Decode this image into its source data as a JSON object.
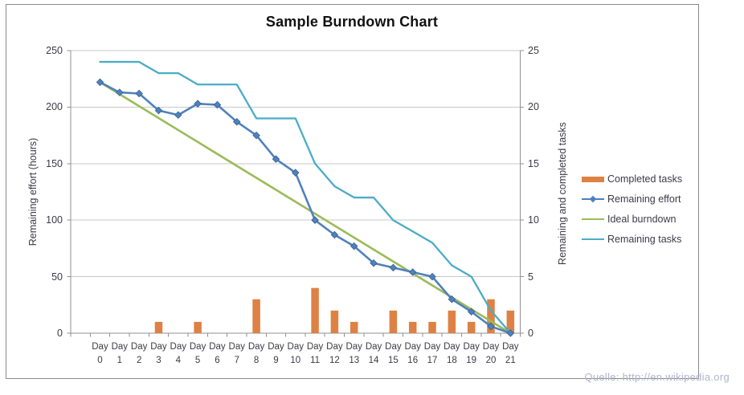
{
  "title": "Sample Burndown Chart",
  "attribution": "Quelle: http://en.wikipedia.org",
  "axes": {
    "left": {
      "title": "Remaining effort (hours)",
      "ticks": [
        0,
        50,
        100,
        150,
        200,
        250
      ]
    },
    "right": {
      "title": "Remaining and completed tasks",
      "ticks": [
        0,
        5,
        10,
        15,
        20,
        25
      ]
    },
    "x": {
      "prefix": "Day",
      "days": [
        "0",
        "1",
        "2",
        "3",
        "4",
        "5",
        "6",
        "7",
        "8",
        "9",
        "10",
        "11",
        "12",
        "13",
        "14",
        "15",
        "16",
        "17",
        "18",
        "19",
        "20",
        "21"
      ]
    }
  },
  "legend": [
    {
      "label": "Completed tasks",
      "type": "bar",
      "color": "#DE8144"
    },
    {
      "label": "Remaining effort",
      "type": "line-marker",
      "color": "#4F81BD"
    },
    {
      "label": "Ideal burndown",
      "type": "line",
      "color": "#9BBB59"
    },
    {
      "label": "Remaining tasks",
      "type": "line",
      "color": "#4BACC6"
    }
  ],
  "chart_data": {
    "type": "combo",
    "title": "Sample Burndown Chart",
    "categories": [
      "Day 0",
      "Day 1",
      "Day 2",
      "Day 3",
      "Day 4",
      "Day 5",
      "Day 6",
      "Day 7",
      "Day 8",
      "Day 9",
      "Day 10",
      "Day 11",
      "Day 12",
      "Day 13",
      "Day 14",
      "Day 15",
      "Day 16",
      "Day 17",
      "Day 18",
      "Day 19",
      "Day 20",
      "Day 21"
    ],
    "ylabel_left": "Remaining effort (hours)",
    "ylabel_right": "Remaining and completed tasks",
    "ylim_left": [
      0,
      250
    ],
    "ylim_right": [
      0,
      25
    ],
    "grid": "horizontal-major",
    "legend_position": "right-middle",
    "series": [
      {
        "name": "Completed tasks",
        "type": "bar",
        "axis": "right",
        "color": "#DE8144",
        "values": [
          0,
          0,
          0,
          1,
          0,
          1,
          0,
          0,
          3,
          0,
          0,
          4,
          2,
          1,
          0,
          2,
          1,
          1,
          2,
          1,
          3,
          2
        ]
      },
      {
        "name": "Remaining effort",
        "type": "line",
        "marker": "diamond",
        "axis": "left",
        "color": "#4F81BD",
        "values": [
          222,
          213,
          212,
          197,
          193,
          203,
          202,
          187,
          175,
          154,
          142,
          100,
          87,
          77,
          62,
          58,
          54,
          50,
          30,
          19,
          6,
          0
        ]
      },
      {
        "name": "Ideal burndown",
        "type": "line",
        "axis": "left",
        "color": "#9BBB59",
        "values": [
          222,
          211.4,
          200.9,
          190.3,
          179.7,
          169.1,
          158.6,
          148.0,
          137.4,
          126.9,
          116.3,
          105.7,
          95.1,
          84.6,
          74.0,
          63.4,
          52.9,
          42.3,
          31.7,
          21.1,
          10.6,
          0
        ]
      },
      {
        "name": "Remaining tasks",
        "type": "line",
        "axis": "right",
        "color": "#4BACC6",
        "values": [
          24,
          24,
          24,
          23,
          23,
          22,
          22,
          22,
          19,
          19,
          19,
          15,
          13,
          12,
          12,
          10,
          9,
          8,
          6,
          5,
          2,
          0
        ]
      }
    ]
  }
}
